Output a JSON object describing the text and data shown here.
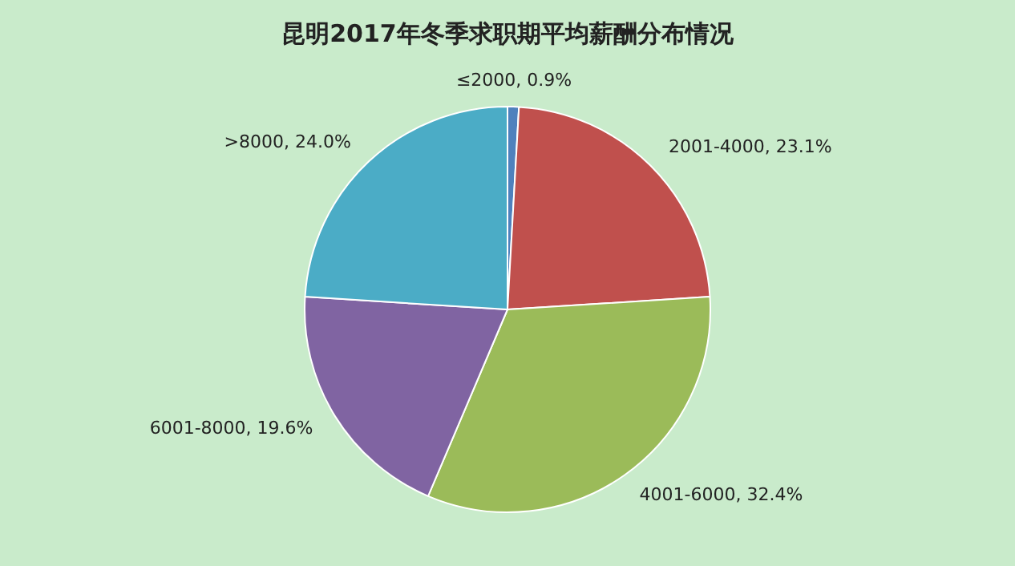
{
  "chart_data": {
    "type": "pie",
    "title": "昆明2017年冬季求职期平均薪酬分布情况",
    "categories": [
      "≤2000",
      "2001-4000",
      "4001-6000",
      "6001-8000",
      ">8000"
    ],
    "values": [
      0.9,
      23.1,
      32.4,
      19.6,
      24.0
    ],
    "value_labels": [
      ", 0.9%",
      ", 23.1%",
      ", 32.4%",
      ", 19.6%",
      ", 24.0%"
    ],
    "colors": [
      "#4f81bd",
      "#c0504d",
      "#9bbb59",
      "#8064a2",
      "#4bacc6"
    ],
    "legend": false
  }
}
